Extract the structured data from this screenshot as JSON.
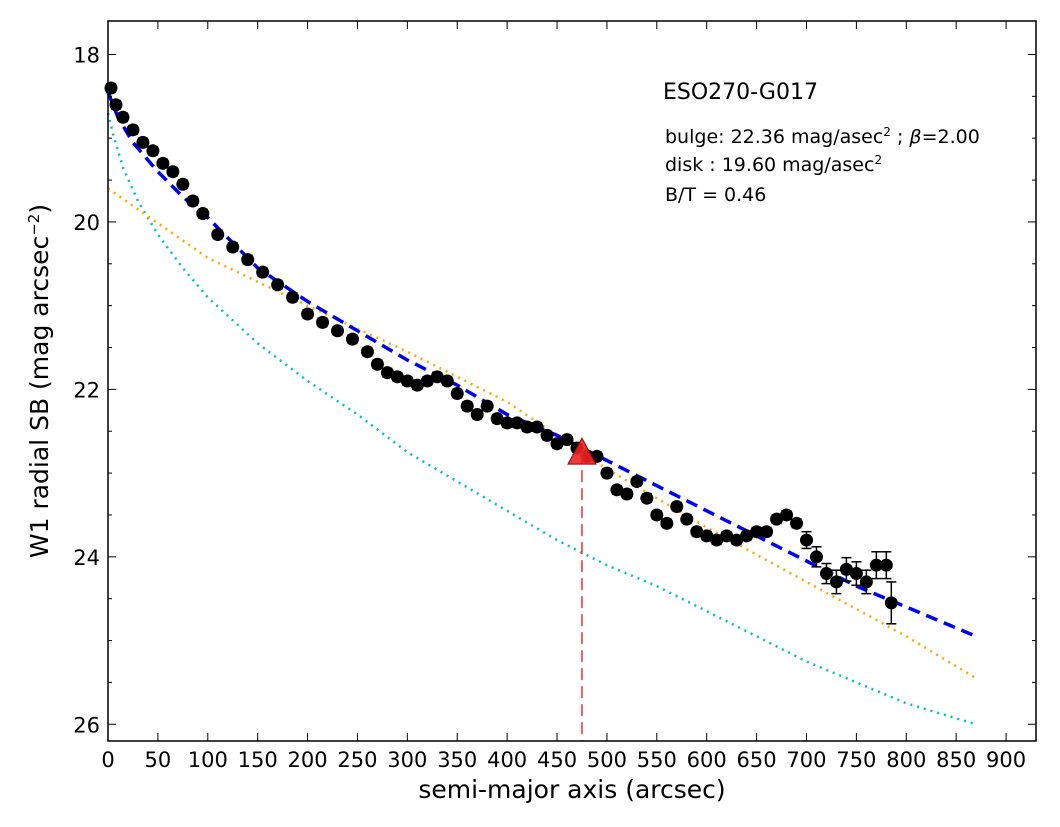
{
  "chart_data": {
    "type": "scatter",
    "xlabel": "semi-major axis (arcsec)",
    "ylabel": "W1 radial SB (mag arcsec",
    "ylabel_sup": "−2",
    "ylabel_close": ")",
    "xlim": [
      0,
      930
    ],
    "ylim": [
      26.2,
      17.6
    ],
    "y_inverted": true,
    "xticks": [
      0,
      50,
      100,
      150,
      200,
      250,
      300,
      350,
      400,
      450,
      500,
      550,
      600,
      650,
      700,
      750,
      800,
      850,
      900
    ],
    "yticks": [
      18,
      20,
      22,
      24,
      26
    ],
    "grid": false,
    "annotations": {
      "title": "ESO270-G017",
      "bulge_prefix": "bulge: 22.36 mag/asec",
      "bulge_sup": "2",
      "bulge_sep": " ; ",
      "bulge_beta": "β",
      "bulge_beta_val": "=2.00",
      "disk_prefix": "disk  : 19.60 mag/asec",
      "disk_sup": "2",
      "bt": "B/T = 0.46"
    },
    "colors": {
      "data": "#000000",
      "total_fit": "#0000ee",
      "disk_fit": "#ffa500",
      "bulge_fit": "#00bfbf",
      "marker": "#ee2222",
      "marker_line": "#ee3333"
    },
    "observed_profile": {
      "name": "",
      "x": [
        3,
        8,
        15,
        25,
        35,
        45,
        55,
        65,
        75,
        85,
        95,
        110,
        125,
        140,
        155,
        170,
        185,
        200,
        215,
        230,
        245,
        260,
        270,
        280,
        290,
        300,
        310,
        320,
        330,
        340,
        350,
        360,
        370,
        380,
        390,
        400,
        410,
        420,
        430,
        440,
        450,
        460,
        470,
        480,
        490,
        500,
        510,
        520,
        530,
        540,
        550,
        560,
        570,
        580,
        590,
        600,
        610,
        620,
        630,
        640,
        650,
        660,
        670,
        680,
        690,
        700,
        710,
        720,
        730,
        740,
        750,
        760,
        770,
        780,
        785
      ],
      "y": [
        18.4,
        18.6,
        18.75,
        18.9,
        19.05,
        19.15,
        19.3,
        19.4,
        19.55,
        19.75,
        19.9,
        20.15,
        20.3,
        20.45,
        20.6,
        20.75,
        20.9,
        21.1,
        21.2,
        21.3,
        21.4,
        21.55,
        21.7,
        21.8,
        21.85,
        21.9,
        21.95,
        21.9,
        21.85,
        21.9,
        22.05,
        22.2,
        22.3,
        22.2,
        22.35,
        22.4,
        22.4,
        22.45,
        22.45,
        22.55,
        22.65,
        22.6,
        22.7,
        22.8,
        22.8,
        23.0,
        23.2,
        23.25,
        23.1,
        23.3,
        23.5,
        23.6,
        23.4,
        23.55,
        23.7,
        23.75,
        23.8,
        23.75,
        23.8,
        23.75,
        23.7,
        23.7,
        23.55,
        23.5,
        23.6,
        23.8,
        24.0,
        24.2,
        24.3,
        24.15,
        24.2,
        24.3,
        24.1,
        24.1,
        24.55
      ],
      "err": [
        0.05,
        0.05,
        0.05,
        0.05,
        0.05,
        0.05,
        0.05,
        0.05,
        0.05,
        0.05,
        0.05,
        0.05,
        0.05,
        0.05,
        0.05,
        0.05,
        0.05,
        0.05,
        0.05,
        0.05,
        0.05,
        0.05,
        0.05,
        0.05,
        0.05,
        0.05,
        0.05,
        0.05,
        0.05,
        0.05,
        0.05,
        0.05,
        0.05,
        0.05,
        0.05,
        0.05,
        0.05,
        0.05,
        0.05,
        0.05,
        0.05,
        0.05,
        0.05,
        0.05,
        0.05,
        0.05,
        0.05,
        0.05,
        0.05,
        0.05,
        0.05,
        0.05,
        0.05,
        0.05,
        0.05,
        0.05,
        0.05,
        0.05,
        0.05,
        0.05,
        0.05,
        0.05,
        0.05,
        0.05,
        0.05,
        0.1,
        0.12,
        0.12,
        0.14,
        0.14,
        0.14,
        0.14,
        0.16,
        0.16,
        0.25
      ]
    },
    "total_fit": {
      "name": "",
      "x": [
        0,
        10,
        25,
        50,
        75,
        100,
        150,
        200,
        250,
        300,
        350,
        400,
        450,
        500,
        550,
        600,
        650,
        700,
        750,
        800,
        870
      ],
      "y": [
        18.45,
        18.75,
        19.05,
        19.4,
        19.7,
        19.95,
        20.55,
        20.95,
        21.3,
        21.65,
        21.95,
        22.3,
        22.55,
        22.85,
        23.15,
        23.45,
        23.75,
        24.05,
        24.35,
        24.6,
        24.95
      ]
    },
    "disk_fit": {
      "name": "",
      "x": [
        0,
        100,
        200,
        300,
        400,
        500,
        600,
        700,
        800,
        870
      ],
      "y": [
        19.6,
        20.43,
        21.0,
        21.55,
        22.15,
        22.95,
        23.65,
        24.3,
        24.95,
        25.45
      ]
    },
    "bulge_fit": {
      "name": "",
      "x": [
        0,
        5,
        15,
        30,
        50,
        75,
        100,
        150,
        200,
        250,
        300,
        350,
        400,
        450,
        500,
        550,
        600,
        650,
        700,
        750,
        800,
        870
      ],
      "y": [
        18.7,
        18.95,
        19.35,
        19.75,
        20.15,
        20.55,
        20.9,
        21.45,
        21.9,
        22.3,
        22.75,
        23.1,
        23.45,
        23.8,
        24.1,
        24.35,
        24.65,
        24.95,
        25.25,
        25.5,
        25.75,
        26.0
      ]
    },
    "marker": {
      "x": 475,
      "y": 22.75
    }
  }
}
